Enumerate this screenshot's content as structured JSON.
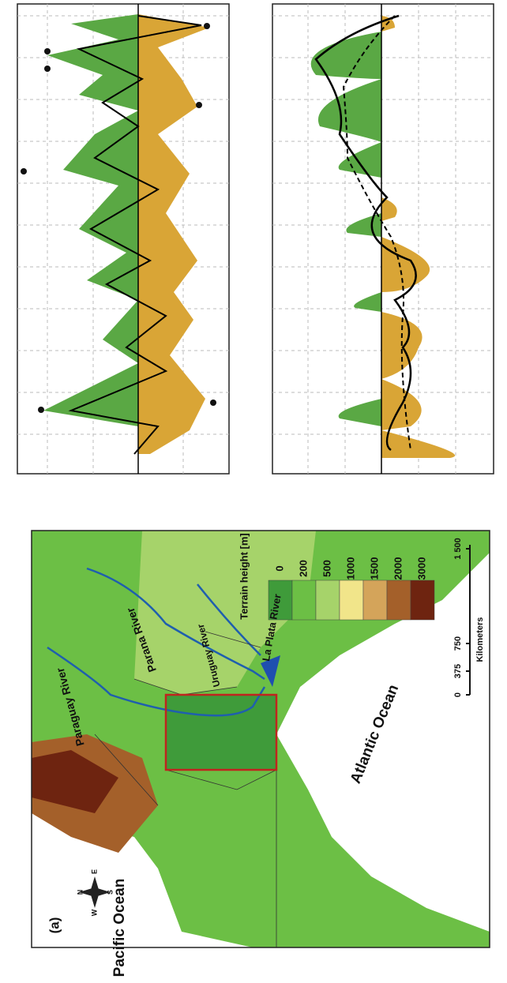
{
  "map": {
    "panel_label": "(a)",
    "oceans": [
      "Pacific Ocean",
      "Atlantic Ocean"
    ],
    "rivers": [
      "Paraguay River",
      "Parana River",
      "Uruguay River",
      "La Plata River"
    ],
    "legend": {
      "title": "Terrain height [m]",
      "labels": [
        "0",
        "200",
        "500",
        "1000",
        "1500",
        "2000",
        "3000"
      ],
      "colors": [
        "#3f9b3a",
        "#6cbf45",
        "#a6d36a",
        "#f1e58a",
        "#d4a45a",
        "#a4602a",
        "#6e2410"
      ]
    },
    "scale": {
      "labels": [
        "0",
        "375",
        "750",
        "1 500"
      ],
      "unit": "Kilometers"
    },
    "compass": [
      "N",
      "E",
      "S",
      "W"
    ]
  }
}
